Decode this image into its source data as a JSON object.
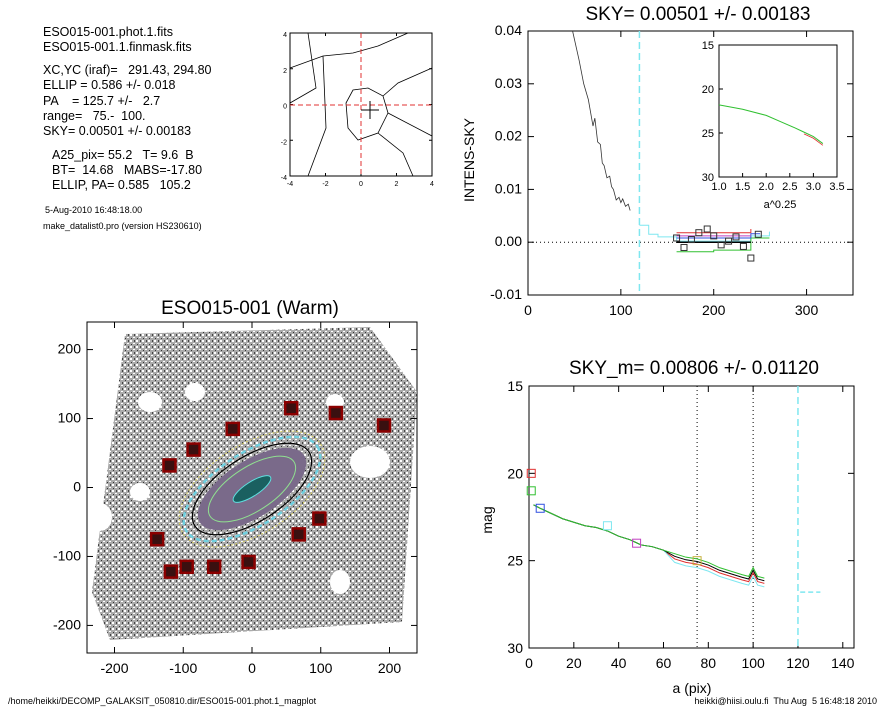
{
  "header_info": {
    "lines": [
      "ESO015-001.phot.1.fits",
      "ESO015-001.1.finmask.fits",
      "XC,YC (iraf)=   291.43, 294.80",
      "ELLIP = 0.586 +/- 0.018",
      "PA    = 125.7 +/-   2.7",
      "range=   75.-  100.",
      "SKY= 0.00501 +/- 0.00183",
      "A25_pix= 55.2   T= 9.6  B",
      "BT=  14.68   MABS=-17.80",
      "ELLIP, PA= 0.585   105.2"
    ],
    "date": "5-Aug-2010 16:48:18.00",
    "program": "make_datalist0.pro (version HS230610)"
  },
  "footer": {
    "left": "/home/heikki/DECOMP_GALAKSIT_050810.dir/ESO015-001.phot.1_magplot",
    "right": "heikki@hiisi.oulu.fi  Thu Aug  5 16:48:18 2010"
  },
  "colors": {
    "axis": "#000000",
    "cyan": "#7fe7f0",
    "red": "#e03030",
    "green": "#30c030",
    "blue": "#3050e0",
    "magenta": "#c040c0",
    "marker": "#8b0000",
    "galaxy": "#333333"
  },
  "chart_data": [
    {
      "id": "center-contour",
      "type": "line",
      "title": "",
      "x_ticks": [
        "-4",
        "-2",
        "0",
        "2",
        "4"
      ],
      "y_ticks": [
        "-4",
        "-2",
        "0",
        "2",
        "4"
      ],
      "xlim": [
        -4,
        4
      ],
      "ylim": [
        -4,
        4
      ],
      "center": [
        0.5,
        -0.3
      ]
    },
    {
      "id": "sky-profile",
      "type": "line",
      "title": "SKY= 0.00501 +/- 0.00183",
      "xlabel": "",
      "ylabel": "INTENS-SKY",
      "xlim": [
        0,
        350
      ],
      "ylim": [
        -0.01,
        0.04
      ],
      "x_ticks": [
        "0",
        "100",
        "200",
        "300"
      ],
      "y_ticks": [
        "-0.01",
        "0.00",
        "0.01",
        "0.02",
        "0.03",
        "0.04"
      ],
      "vline": 120,
      "profile": {
        "x": [
          48,
          55,
          60,
          65,
          70,
          72,
          75,
          78,
          80,
          82,
          85,
          88,
          90,
          92,
          95,
          98,
          100,
          102,
          105,
          108,
          110
        ],
        "y": [
          0.04,
          0.0345,
          0.03,
          0.027,
          0.022,
          0.0235,
          0.019,
          0.0185,
          0.015,
          0.0145,
          0.0122,
          0.0125,
          0.0105,
          0.01,
          0.008,
          0.0085,
          0.0075,
          0.0082,
          0.0068,
          0.0072,
          0.006
        ]
      },
      "squares": {
        "x": [
          160,
          168,
          176,
          184,
          193,
          200,
          208,
          216,
          224,
          232,
          240,
          248
        ],
        "y": [
          0.0008,
          -0.001,
          0.0005,
          0.0018,
          0.0025,
          0.0012,
          -0.0005,
          0.0002,
          0.001,
          -0.0008,
          -0.003,
          0.0015
        ]
      },
      "inset": {
        "xlabel": "a^0.25",
        "xlim": [
          1.0,
          3.5
        ],
        "ylim": [
          15,
          30
        ],
        "x_ticks": [
          "1.0",
          "1.5",
          "2.0",
          "2.5",
          "3.0",
          "3.5"
        ],
        "y_ticks": [
          "15",
          "20",
          "25",
          "30"
        ],
        "x": [
          1.0,
          1.5,
          2.0,
          2.3,
          2.6,
          2.8,
          3.0,
          3.1,
          3.2
        ],
        "y": [
          21.8,
          22.3,
          23.0,
          23.7,
          24.4,
          24.9,
          25.4,
          25.8,
          26.2
        ]
      }
    },
    {
      "id": "galaxy-image",
      "type": "scatter",
      "title": "ESO015-001 (Warm)",
      "xlim": [
        -240,
        240
      ],
      "ylim": [
        -240,
        240
      ],
      "x_ticks": [
        "-200",
        "-100",
        "0",
        "100",
        "200"
      ],
      "y_ticks": [
        "-200",
        "-100",
        "0",
        "100",
        "200"
      ],
      "markers": {
        "x": [
          -120,
          -85,
          -28,
          57,
          122,
          192,
          -138,
          -95,
          -55,
          -118,
          -5,
          68,
          98
        ],
        "y": [
          32,
          55,
          85,
          115,
          108,
          90,
          -75,
          -115,
          -115,
          -122,
          -108,
          -68,
          -45
        ]
      }
    },
    {
      "id": "mag-profile",
      "type": "line",
      "title": "SKY_m=  0.00806 +/- 0.01120",
      "xlabel": "a (pix)",
      "ylabel": "mag",
      "xlim": [
        0,
        145
      ],
      "ylim": [
        30,
        15
      ],
      "x_ticks": [
        "0",
        "20",
        "40",
        "60",
        "80",
        "100",
        "120",
        "140"
      ],
      "y_ticks": [
        "15",
        "20",
        "25",
        "30"
      ],
      "vlines": [
        75,
        100
      ],
      "cyan_vline": 120,
      "x": [
        2,
        5,
        10,
        15,
        20,
        25,
        30,
        35,
        40,
        45,
        50,
        55,
        60,
        65,
        70,
        75,
        80,
        85,
        90,
        95,
        98,
        100,
        102,
        105
      ],
      "y": [
        21.8,
        22.0,
        22.3,
        22.6,
        22.8,
        23.0,
        23.1,
        23.3,
        23.6,
        23.8,
        24.1,
        24.2,
        24.4,
        24.6,
        24.8,
        24.9,
        25.1,
        25.4,
        25.6,
        25.8,
        25.9,
        25.4,
        25.9,
        26.0
      ]
    }
  ]
}
